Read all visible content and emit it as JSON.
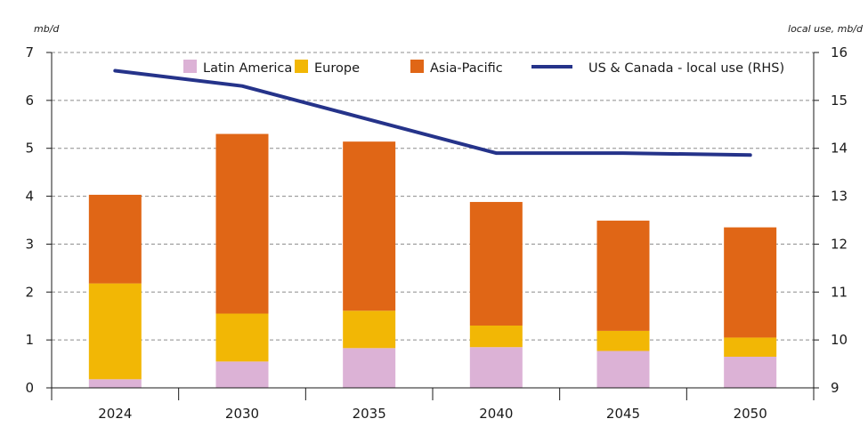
{
  "chart_data": {
    "type": "bar",
    "stacked": true,
    "categories": [
      "2024",
      "2030",
      "2035",
      "2040",
      "2045",
      "2050"
    ],
    "ylabel": "mb/d",
    "y2label": "local use, mb/d",
    "ylim": [
      0,
      7
    ],
    "y2lim": [
      9,
      16
    ],
    "yticks": [
      "0",
      "1",
      "2",
      "3",
      "4",
      "5",
      "6",
      "7"
    ],
    "y2ticks": [
      "9",
      "10",
      "11",
      "12",
      "13",
      "14",
      "15",
      "16"
    ],
    "grid": "horizontal dashed",
    "legend_position": "top",
    "series": [
      {
        "name": "Latin America",
        "type": "bar",
        "color": "#dcb2d6",
        "values": [
          0.18,
          0.55,
          0.83,
          0.85,
          0.77,
          0.65
        ]
      },
      {
        "name": "Europe",
        "type": "bar",
        "color": "#f2b705",
        "values": [
          2.0,
          1.0,
          0.78,
          0.45,
          0.42,
          0.4
        ]
      },
      {
        "name": "Asia-Pacific",
        "type": "bar",
        "color": "#e06616",
        "values": [
          1.85,
          3.75,
          3.53,
          2.58,
          2.3,
          2.3
        ]
      },
      {
        "name": "US & Canada - local use (RHS)",
        "type": "line",
        "axis": "right",
        "color": "#25338a",
        "values": [
          15.62,
          15.3,
          14.6,
          13.9,
          13.9,
          13.86
        ]
      }
    ]
  }
}
